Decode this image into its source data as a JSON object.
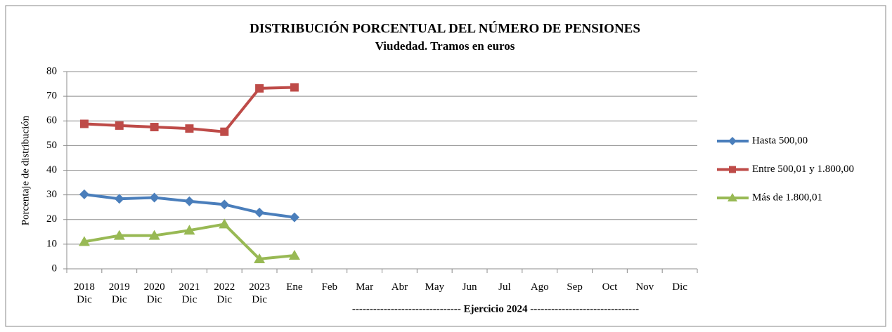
{
  "chart_data": {
    "type": "line",
    "title": "DISTRIBUCIÓN PORCENTUAL DEL NÚMERO DE PENSIONES",
    "subtitle": "Viudedad. Tramos en euros",
    "y_label": "Porcentaje de distribución",
    "x_annotation": "------------------------------- Ejercicio 2024 -------------------------------",
    "categories": [
      [
        "2018",
        "Dic"
      ],
      [
        "2019",
        "Dic"
      ],
      [
        "2020",
        "Dic"
      ],
      [
        "2021",
        "Dic"
      ],
      [
        "2022",
        "Dic"
      ],
      [
        "2023",
        "Dic"
      ],
      [
        "Ene"
      ],
      [
        "Feb"
      ],
      [
        "Mar"
      ],
      [
        "Abr"
      ],
      [
        "May"
      ],
      [
        "Jun"
      ],
      [
        "Jul"
      ],
      [
        "Ago"
      ],
      [
        "Sep"
      ],
      [
        "Oct"
      ],
      [
        "Nov"
      ],
      [
        "Dic"
      ]
    ],
    "series": [
      {
        "name": "Hasta 500,00",
        "color": "#4a7ebb",
        "marker": "diamond",
        "values": [
          30.2,
          28.4,
          28.9,
          27.4,
          26.1,
          22.8,
          20.9,
          null,
          null,
          null,
          null,
          null,
          null,
          null,
          null,
          null,
          null,
          null
        ]
      },
      {
        "name": "Entre 500,01 y 1.800,00",
        "color": "#be4b48",
        "marker": "square",
        "values": [
          58.8,
          58.1,
          57.5,
          56.9,
          55.6,
          73.2,
          73.6,
          null,
          null,
          null,
          null,
          null,
          null,
          null,
          null,
          null,
          null,
          null
        ]
      },
      {
        "name": "Más de 1.800,01",
        "color": "#98b954",
        "marker": "triangle",
        "values": [
          11.0,
          13.5,
          13.5,
          15.6,
          18.1,
          4.0,
          5.4,
          null,
          null,
          null,
          null,
          null,
          null,
          null,
          null,
          null,
          null,
          null
        ]
      }
    ],
    "ylim": [
      0,
      80
    ],
    "yticks": [
      0,
      10,
      20,
      30,
      40,
      50,
      60,
      70,
      80
    ],
    "grid": true,
    "legend": "right"
  }
}
